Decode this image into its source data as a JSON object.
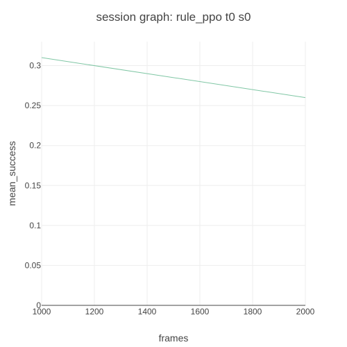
{
  "chart_data": {
    "type": "line",
    "title": "session graph: rule_ppo t0 s0",
    "xlabel": "frames",
    "ylabel": "mean_success",
    "xlim": [
      1000,
      2000
    ],
    "ylim": [
      0,
      0.33
    ],
    "x_ticks": [
      1000,
      1200,
      1400,
      1600,
      1800,
      2000
    ],
    "x_tick_labels": [
      "1000",
      "1200",
      "1400",
      "1600",
      "1800",
      "2000"
    ],
    "y_ticks": [
      0,
      0.05,
      0.1,
      0.15,
      0.2,
      0.25,
      0.3
    ],
    "y_tick_labels": [
      "0",
      "0.05",
      "0.1",
      "0.15",
      "0.2",
      "0.25",
      "0.3"
    ],
    "grid": true,
    "legend": "none",
    "series": [
      {
        "x": [
          1000,
          2000
        ],
        "y": [
          0.31,
          0.26
        ],
        "color": "#7fc6a4"
      }
    ]
  }
}
